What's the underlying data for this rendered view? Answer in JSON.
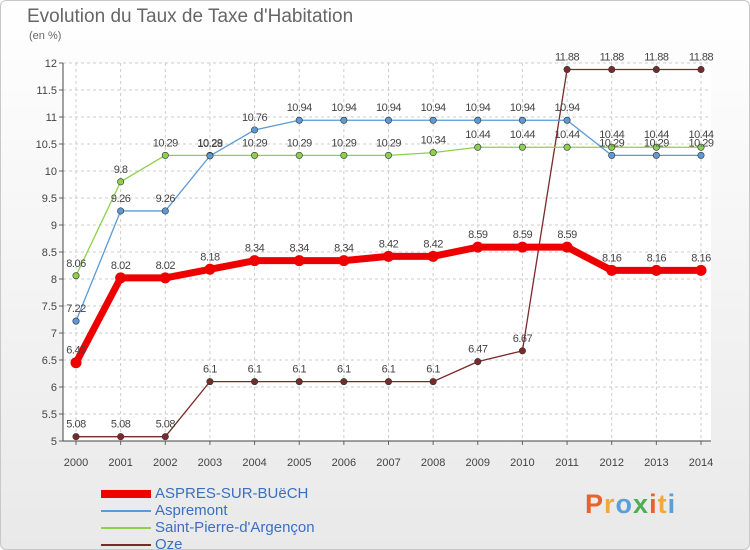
{
  "title": "Evolution du Taux de Taxe d'Habitation",
  "subtitle": "(en %)",
  "logo": {
    "text": "Proxiti",
    "colors": [
      "#e8632b",
      "#f2a93b",
      "#5a9fd6",
      "#4caf50",
      "#e8632b",
      "#f2a93b",
      "#5a9fd6"
    ]
  },
  "chart_data": {
    "type": "line",
    "x": [
      "2000",
      "2001",
      "2002",
      "2003",
      "2004",
      "2005",
      "2006",
      "2007",
      "2008",
      "2009",
      "2010",
      "2011",
      "2012",
      "2013",
      "2014"
    ],
    "ylim": [
      5,
      12
    ],
    "yticks": [
      "5",
      "5.5",
      "6",
      "6.5",
      "7",
      "7.5",
      "8",
      "8.5",
      "9",
      "9.5",
      "10",
      "10.5",
      "11",
      "11.5",
      "12"
    ],
    "grid": true,
    "series": [
      {
        "name": "ASPRES-SUR-BUëCH",
        "color": "#ee0000",
        "width": 7,
        "values": [
          6.45,
          8.02,
          8.02,
          8.18,
          8.34,
          8.34,
          8.34,
          8.42,
          8.42,
          8.59,
          8.59,
          8.59,
          8.16,
          8.16,
          8.16
        ],
        "labels": [
          "6.45",
          "8.02",
          "8.02",
          "8.18",
          "8.34",
          "8.34",
          "8.34",
          "8.42",
          "8.42",
          "8.59",
          "8.59",
          "8.59",
          "8.16",
          "8.16",
          "8.16"
        ]
      },
      {
        "name": "Aspremont",
        "color": "#5b9ad5",
        "width": 1.3,
        "values": [
          7.22,
          9.26,
          9.26,
          10.28,
          10.76,
          10.94,
          10.94,
          10.94,
          10.94,
          10.94,
          10.94,
          10.94,
          10.29,
          10.29,
          10.29
        ],
        "labels": [
          "7.22",
          "9.26",
          "9.26",
          "10.28",
          "10.76",
          "10.94",
          "10.94",
          "10.94",
          "10.94",
          "10.94",
          "10.94",
          "10.94",
          "10.29",
          "10.29",
          "10.29"
        ]
      },
      {
        "name": "Saint-Pierre-d'Argençon",
        "color": "#8dd14a",
        "width": 1.3,
        "values": [
          8.06,
          9.8,
          10.29,
          10.29,
          10.29,
          10.29,
          10.29,
          10.29,
          10.34,
          10.44,
          10.44,
          10.44,
          10.44,
          10.44,
          10.44
        ],
        "labels": [
          "8.06",
          "9.8",
          "10.29",
          "10.29",
          "10.29",
          "10.29",
          "10.29",
          "10.29",
          "10.34",
          "10.44",
          "10.44",
          "10.44",
          "10.44",
          "10.44",
          "10.44"
        ]
      },
      {
        "name": "Oze",
        "color": "#7a2a2a",
        "width": 1.3,
        "values": [
          5.08,
          5.08,
          5.08,
          6.1,
          6.1,
          6.1,
          6.1,
          6.1,
          6.1,
          6.47,
          6.67,
          11.88,
          11.88,
          11.88,
          11.88
        ],
        "labels": [
          "5.08",
          "5.08",
          "5.08",
          "6.1",
          "6.1",
          "6.1",
          "6.1",
          "6.1",
          "6.1",
          "6.47",
          "6.67",
          "11.88",
          "11.88",
          "11.88",
          "11.88"
        ]
      }
    ]
  }
}
